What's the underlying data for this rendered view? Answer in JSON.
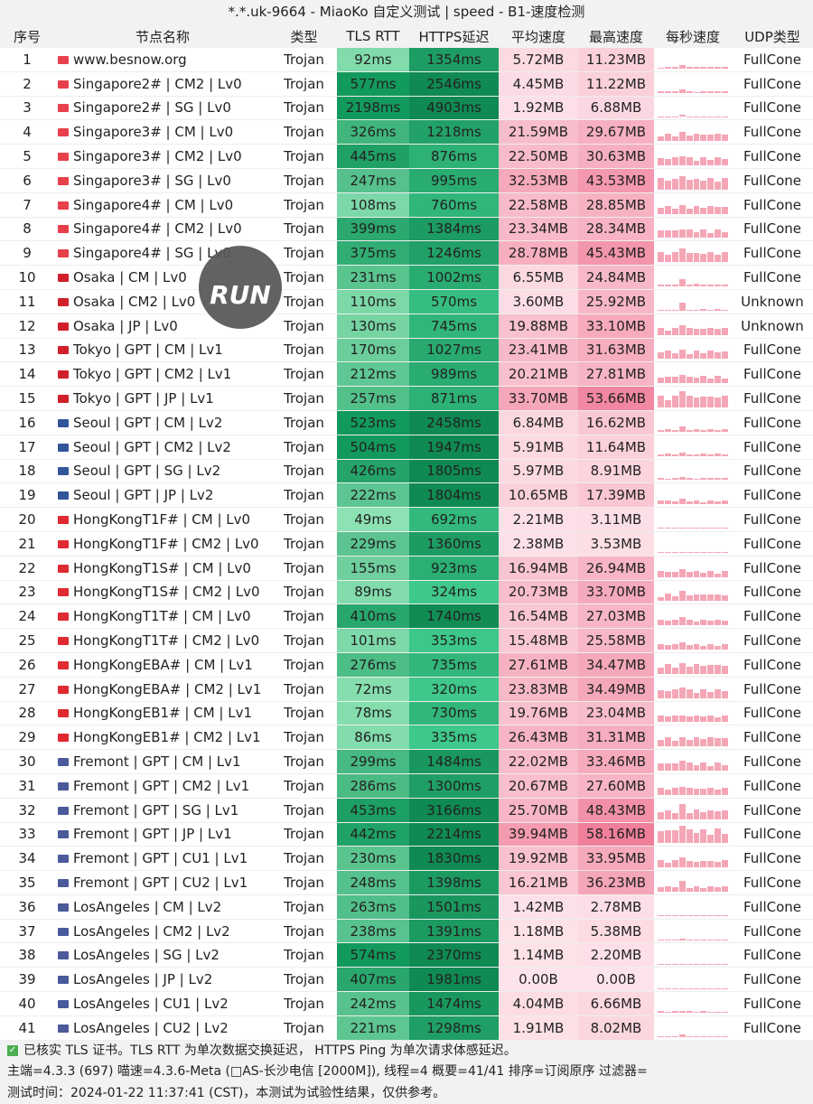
{
  "title": "*.*.uk-9664 - MiaoKo 自定义测试 | speed - B1-速度检测",
  "headers": [
    "序号",
    "节点名称",
    "类型",
    "TLS RTT",
    "HTTPS延迟",
    "平均速度",
    "最高速度",
    "每秒速度",
    "UDP类型"
  ],
  "flag_colors": {
    "sg": "#e8404a",
    "jp": "#d0202a",
    "kr": "#335599",
    "hk": "#de2a30",
    "us": "#4a5a9a"
  },
  "rows": [
    [
      "1",
      "sg",
      "www.besnow.org",
      "Trojan",
      "92ms",
      "1354ms",
      "5.72MB",
      "11.23MB",
      "FullCone"
    ],
    [
      "2",
      "sg",
      "Singapore2# | CM2 | Lv0",
      "Trojan",
      "577ms",
      "2546ms",
      "4.45MB",
      "11.22MB",
      "FullCone"
    ],
    [
      "3",
      "sg",
      "Singapore2# | SG | Lv0",
      "Trojan",
      "2198ms",
      "4903ms",
      "1.92MB",
      "6.88MB",
      "FullCone"
    ],
    [
      "4",
      "sg",
      "Singapore3# | CM | Lv0",
      "Trojan",
      "326ms",
      "1218ms",
      "21.59MB",
      "29.67MB",
      "FullCone"
    ],
    [
      "5",
      "sg",
      "Singapore3# | CM2 | Lv0",
      "Trojan",
      "445ms",
      "876ms",
      "22.50MB",
      "30.63MB",
      "FullCone"
    ],
    [
      "6",
      "sg",
      "Singapore3# | SG | Lv0",
      "Trojan",
      "247ms",
      "995ms",
      "32.53MB",
      "43.53MB",
      "FullCone"
    ],
    [
      "7",
      "sg",
      "Singapore4# | CM | Lv0",
      "Trojan",
      "108ms",
      "760ms",
      "22.58MB",
      "28.85MB",
      "FullCone"
    ],
    [
      "8",
      "sg",
      "Singapore4# | CM2 | Lv0",
      "Trojan",
      "399ms",
      "1384ms",
      "23.34MB",
      "28.34MB",
      "FullCone"
    ],
    [
      "9",
      "sg",
      "Singapore4# | SG | Lv0",
      "Trojan",
      "375ms",
      "1246ms",
      "28.78MB",
      "45.43MB",
      "FullCone"
    ],
    [
      "10",
      "jp",
      "Osaka | CM | Lv0",
      "Trojan",
      "231ms",
      "1002ms",
      "6.55MB",
      "24.84MB",
      "FullCone"
    ],
    [
      "11",
      "jp",
      "Osaka | CM2 | Lv0",
      "Trojan",
      "110ms",
      "570ms",
      "3.60MB",
      "25.92MB",
      "Unknown"
    ],
    [
      "12",
      "jp",
      "Osaka | JP | Lv0",
      "Trojan",
      "130ms",
      "745ms",
      "19.88MB",
      "33.10MB",
      "Unknown"
    ],
    [
      "13",
      "jp",
      "Tokyo | GPT | CM | Lv1",
      "Trojan",
      "170ms",
      "1027ms",
      "23.41MB",
      "31.63MB",
      "FullCone"
    ],
    [
      "14",
      "jp",
      "Tokyo | GPT | CM2 | Lv1",
      "Trojan",
      "212ms",
      "989ms",
      "20.21MB",
      "27.81MB",
      "FullCone"
    ],
    [
      "15",
      "jp",
      "Tokyo | GPT | JP | Lv1",
      "Trojan",
      "257ms",
      "871ms",
      "33.70MB",
      "53.66MB",
      "FullCone"
    ],
    [
      "16",
      "kr",
      "Seoul | GPT | CM | Lv2",
      "Trojan",
      "523ms",
      "2458ms",
      "6.84MB",
      "16.62MB",
      "FullCone"
    ],
    [
      "17",
      "kr",
      "Seoul | GPT | CM2 | Lv2",
      "Trojan",
      "504ms",
      "1947ms",
      "5.91MB",
      "11.64MB",
      "FullCone"
    ],
    [
      "18",
      "kr",
      "Seoul | GPT | SG | Lv2",
      "Trojan",
      "426ms",
      "1805ms",
      "5.97MB",
      "8.91MB",
      "FullCone"
    ],
    [
      "19",
      "kr",
      "Seoul | GPT | JP | Lv2",
      "Trojan",
      "222ms",
      "1804ms",
      "10.65MB",
      "17.39MB",
      "FullCone"
    ],
    [
      "20",
      "hk",
      "HongKongT1F# | CM | Lv0",
      "Trojan",
      "49ms",
      "692ms",
      "2.21MB",
      "3.11MB",
      "FullCone"
    ],
    [
      "21",
      "hk",
      "HongKongT1F# | CM2 | Lv0",
      "Trojan",
      "229ms",
      "1360ms",
      "2.38MB",
      "3.53MB",
      "FullCone"
    ],
    [
      "22",
      "hk",
      "HongKongT1S# | CM | Lv0",
      "Trojan",
      "155ms",
      "923ms",
      "16.94MB",
      "26.94MB",
      "FullCone"
    ],
    [
      "23",
      "hk",
      "HongKongT1S# | CM2 | Lv0",
      "Trojan",
      "89ms",
      "324ms",
      "20.73MB",
      "33.70MB",
      "FullCone"
    ],
    [
      "24",
      "hk",
      "HongKongT1T# | CM | Lv0",
      "Trojan",
      "410ms",
      "1740ms",
      "16.54MB",
      "27.03MB",
      "FullCone"
    ],
    [
      "25",
      "hk",
      "HongKongT1T# | CM2 | Lv0",
      "Trojan",
      "101ms",
      "353ms",
      "15.48MB",
      "25.58MB",
      "FullCone"
    ],
    [
      "26",
      "hk",
      "HongKongEBA# | CM | Lv1",
      "Trojan",
      "276ms",
      "735ms",
      "27.61MB",
      "34.47MB",
      "FullCone"
    ],
    [
      "27",
      "hk",
      "HongKongEBA# | CM2 | Lv1",
      "Trojan",
      "72ms",
      "320ms",
      "23.83MB",
      "34.49MB",
      "FullCone"
    ],
    [
      "28",
      "hk",
      "HongKongEB1# | CM | Lv1",
      "Trojan",
      "78ms",
      "730ms",
      "19.76MB",
      "23.04MB",
      "FullCone"
    ],
    [
      "29",
      "hk",
      "HongKongEB1# | CM2 | Lv1",
      "Trojan",
      "86ms",
      "335ms",
      "26.43MB",
      "31.31MB",
      "FullCone"
    ],
    [
      "30",
      "us",
      "Fremont | GPT | CM | Lv1",
      "Trojan",
      "299ms",
      "1484ms",
      "22.02MB",
      "33.46MB",
      "FullCone"
    ],
    [
      "31",
      "us",
      "Fremont | GPT | CM2 | Lv1",
      "Trojan",
      "286ms",
      "1300ms",
      "20.67MB",
      "27.60MB",
      "FullCone"
    ],
    [
      "32",
      "us",
      "Fremont | GPT | SG | Lv1",
      "Trojan",
      "453ms",
      "3166ms",
      "25.70MB",
      "48.43MB",
      "FullCone"
    ],
    [
      "33",
      "us",
      "Fremont | GPT | JP | Lv1",
      "Trojan",
      "442ms",
      "2214ms",
      "39.94MB",
      "58.16MB",
      "FullCone"
    ],
    [
      "34",
      "us",
      "Fremont | GPT | CU1 | Lv1",
      "Trojan",
      "230ms",
      "1830ms",
      "19.92MB",
      "33.95MB",
      "FullCone"
    ],
    [
      "35",
      "us",
      "Fremont | GPT | CU2 | Lv1",
      "Trojan",
      "248ms",
      "1398ms",
      "16.21MB",
      "36.23MB",
      "FullCone"
    ],
    [
      "36",
      "us",
      "LosAngeles | CM | Lv2",
      "Trojan",
      "263ms",
      "1501ms",
      "1.42MB",
      "2.78MB",
      "FullCone"
    ],
    [
      "37",
      "us",
      "LosAngeles | CM2 | Lv2",
      "Trojan",
      "238ms",
      "1391ms",
      "1.18MB",
      "5.38MB",
      "FullCone"
    ],
    [
      "38",
      "us",
      "LosAngeles | SG | Lv2",
      "Trojan",
      "574ms",
      "2370ms",
      "1.14MB",
      "2.20MB",
      "FullCone"
    ],
    [
      "39",
      "us",
      "LosAngeles | JP | Lv2",
      "Trojan",
      "407ms",
      "1981ms",
      "0.00B",
      "0.00B",
      "FullCone"
    ],
    [
      "40",
      "us",
      "LosAngeles | CU1 | Lv2",
      "Trojan",
      "242ms",
      "1474ms",
      "4.04MB",
      "6.66MB",
      "FullCone"
    ],
    [
      "41",
      "us",
      "LosAngeles | CU2 | Lv2",
      "Trojan",
      "221ms",
      "1298ms",
      "1.91MB",
      "8.02MB",
      "FullCone"
    ]
  ],
  "footer": {
    "line1": "已核实 TLS 证书。TLS RTT 为单次数据交换延迟， HTTPS Ping 为单次请求体感延迟。",
    "line2": "主端=4.3.3 (697) 喵速=4.3.6-Meta (□AS-长沙电信 [2000M]), 线程=4 概要=41/41 排序=订阅原序 过滤器=",
    "line3": "测试时间：2024-01-22 11:37:41 (CST)，本测试为试验性结果，仅供参考。"
  },
  "watermark_logo": "RUN"
}
